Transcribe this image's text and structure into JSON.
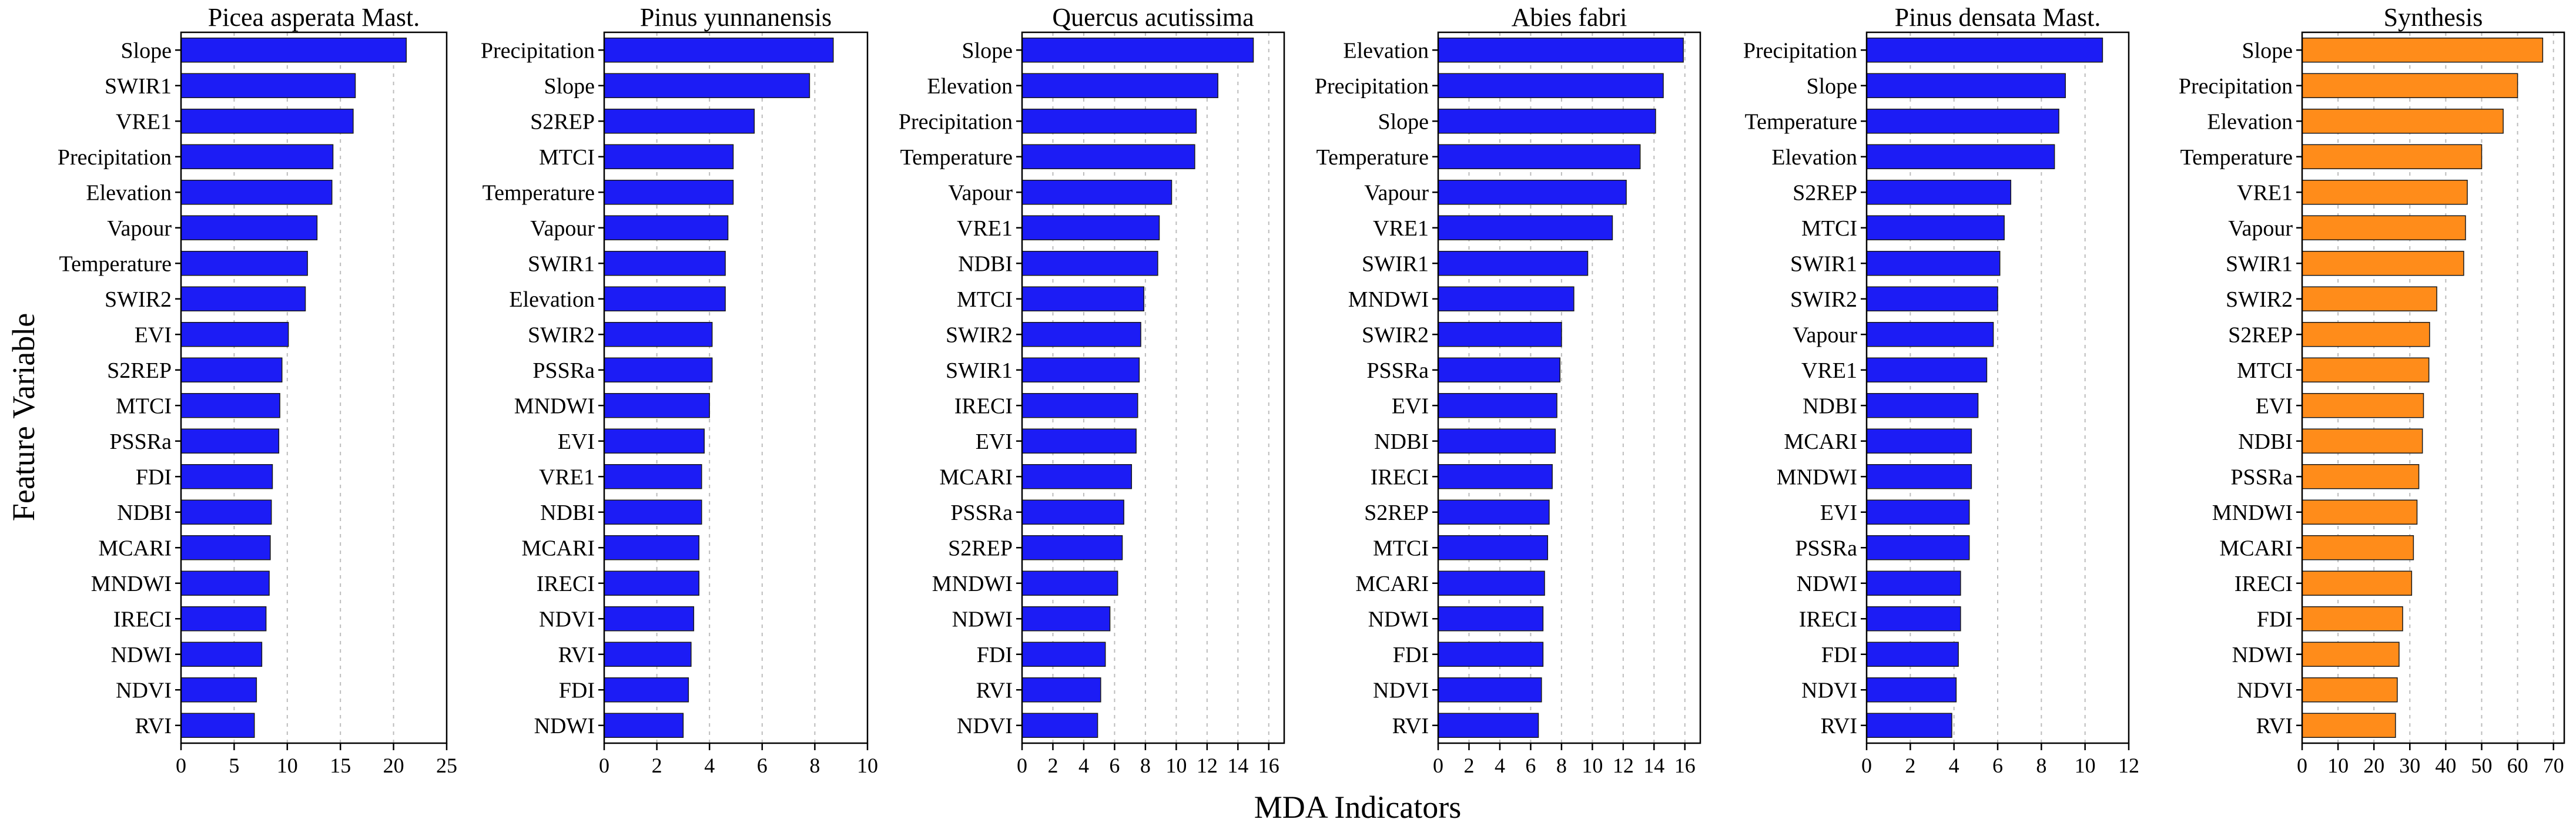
{
  "chart_data": [
    {
      "type": "bar",
      "orientation": "horizontal",
      "title": "Picea asperata Mast.",
      "bar_color": "#1c1cf5",
      "xlim": [
        0,
        25
      ],
      "xticks": [
        0,
        5,
        10,
        15,
        20,
        25
      ],
      "xtick_labels": [
        "0",
        "5",
        "10",
        "15",
        "20",
        "25"
      ],
      "categories": [
        "Slope",
        "SWIR1",
        "VRE1",
        "Precipitation",
        "Elevation",
        "Vapour",
        "Temperature",
        "SWIR2",
        "EVI",
        "S2REP",
        "MTCI",
        "PSSRa",
        "FDI",
        "NDBI",
        "MCARI",
        "MNDWI",
        "IRECI",
        "NDWI",
        "NDVI",
        "RVI"
      ],
      "values": [
        21.2,
        16.4,
        16.2,
        14.3,
        14.2,
        12.8,
        11.9,
        11.7,
        10.1,
        9.5,
        9.3,
        9.2,
        8.6,
        8.5,
        8.4,
        8.3,
        8.0,
        7.6,
        7.1,
        6.9
      ]
    },
    {
      "type": "bar",
      "orientation": "horizontal",
      "title": "Pinus yunnanensis",
      "bar_color": "#1c1cf5",
      "xlim": [
        0,
        10
      ],
      "xticks": [
        0,
        2,
        4,
        6,
        8,
        10
      ],
      "xtick_labels": [
        "0",
        "2",
        "4",
        "6",
        "8",
        "10"
      ],
      "categories": [
        "Precipitation",
        "Slope",
        "S2REP",
        "MTCI",
        "Temperature",
        "Vapour",
        "SWIR1",
        "Elevation",
        "SWIR2",
        "PSSRa",
        "MNDWI",
        "EVI",
        "VRE1",
        "NDBI",
        "MCARI",
        "IRECI",
        "NDVI",
        "RVI",
        "FDI",
        "NDWI"
      ],
      "values": [
        8.7,
        7.8,
        5.7,
        4.9,
        4.9,
        4.7,
        4.6,
        4.6,
        4.1,
        4.1,
        4.0,
        3.8,
        3.7,
        3.7,
        3.6,
        3.6,
        3.4,
        3.3,
        3.2,
        3.0
      ]
    },
    {
      "type": "bar",
      "orientation": "horizontal",
      "title": "Quercus acutissima",
      "bar_color": "#1c1cf5",
      "xlim": [
        0,
        17
      ],
      "xticks": [
        0,
        2,
        4,
        6,
        8,
        10,
        12,
        14,
        16
      ],
      "xtick_labels": [
        "0",
        "2",
        "4",
        "6",
        "8",
        "10",
        "12",
        "14",
        "16"
      ],
      "categories": [
        "Slope",
        "Elevation",
        "Precipitation",
        "Temperature",
        "Vapour",
        "VRE1",
        "NDBI",
        "MTCI",
        "SWIR2",
        "SWIR1",
        "IRECI",
        "EVI",
        "MCARI",
        "PSSRa",
        "S2REP",
        "MNDWI",
        "NDWI",
        "FDI",
        "RVI",
        "NDVI"
      ],
      "values": [
        15.0,
        12.7,
        11.3,
        11.2,
        9.7,
        8.9,
        8.8,
        7.9,
        7.7,
        7.6,
        7.5,
        7.4,
        7.1,
        6.6,
        6.5,
        6.2,
        5.7,
        5.4,
        5.1,
        4.9
      ]
    },
    {
      "type": "bar",
      "orientation": "horizontal",
      "title": "Abies fabri",
      "bar_color": "#1c1cf5",
      "xlim": [
        0,
        17
      ],
      "xticks": [
        0,
        2,
        4,
        6,
        8,
        10,
        12,
        14,
        16
      ],
      "xtick_labels": [
        "0",
        "2",
        "4",
        "6",
        "8",
        "10",
        "12",
        "14",
        "16"
      ],
      "categories": [
        "Elevation",
        "Precipitation",
        "Slope",
        "Temperature",
        "Vapour",
        "VRE1",
        "SWIR1",
        "MNDWI",
        "SWIR2",
        "PSSRa",
        "EVI",
        "NDBI",
        "IRECI",
        "S2REP",
        "MTCI",
        "MCARI",
        "NDWI",
        "FDI",
        "NDVI",
        "RVI"
      ],
      "values": [
        15.9,
        14.6,
        14.1,
        13.1,
        12.2,
        11.3,
        9.7,
        8.8,
        8.0,
        7.9,
        7.7,
        7.6,
        7.4,
        7.2,
        7.1,
        6.9,
        6.8,
        6.8,
        6.7,
        6.5
      ]
    },
    {
      "type": "bar",
      "orientation": "horizontal",
      "title": "Pinus densata Mast.",
      "bar_color": "#1c1cf5",
      "xlim": [
        0,
        12
      ],
      "xticks": [
        0,
        2,
        4,
        6,
        8,
        10,
        12
      ],
      "xtick_labels": [
        "0",
        "2",
        "4",
        "6",
        "8",
        "10",
        "12"
      ],
      "categories": [
        "Precipitation",
        "Slope",
        "Temperature",
        "Elevation",
        "S2REP",
        "MTCI",
        "SWIR1",
        "SWIR2",
        "Vapour",
        "VRE1",
        "NDBI",
        "MCARI",
        "MNDWI",
        "EVI",
        "PSSRa",
        "NDWI",
        "IRECI",
        "FDI",
        "NDVI",
        "RVI"
      ],
      "values": [
        10.8,
        9.1,
        8.8,
        8.6,
        6.6,
        6.3,
        6.1,
        6.0,
        5.8,
        5.5,
        5.1,
        4.8,
        4.8,
        4.7,
        4.7,
        4.3,
        4.3,
        4.2,
        4.1,
        3.9
      ]
    },
    {
      "type": "bar",
      "orientation": "horizontal",
      "title": "Synthesis",
      "bar_color": "#ff8c1a",
      "xlim": [
        0,
        73
      ],
      "xticks": [
        0,
        10,
        20,
        30,
        40,
        50,
        60,
        70
      ],
      "xtick_labels": [
        "0",
        "10",
        "20",
        "30",
        "40",
        "50",
        "60",
        "70"
      ],
      "categories": [
        "Slope",
        "Precipitation",
        "Elevation",
        "Temperature",
        "VRE1",
        "Vapour",
        "SWIR1",
        "SWIR2",
        "S2REP",
        "MTCI",
        "EVI",
        "NDBI",
        "PSSRa",
        "MNDWI",
        "MCARI",
        "IRECI",
        "FDI",
        "NDWI",
        "NDVI",
        "RVI"
      ],
      "values": [
        67,
        60,
        56,
        50,
        46,
        45.5,
        45,
        37.5,
        35.5,
        35.3,
        33.8,
        33.5,
        32.5,
        32,
        31,
        30.5,
        28,
        27,
        26.5,
        26
      ]
    }
  ],
  "axis_labels": {
    "xlabel": "MDA Indicators",
    "ylabel": "Feature Variable"
  }
}
